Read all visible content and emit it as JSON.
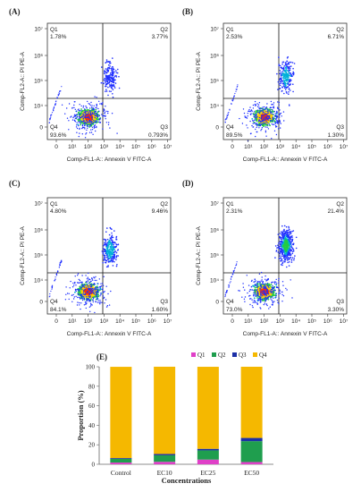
{
  "chart_data": [
    {
      "type": "scatter",
      "panel_label": "(A)",
      "xlabel": "Comp-FL1-A:: Annexin V FITC-A",
      "ylabel": "Comp-FL2-A:: PI PE-A",
      "x_ticks": [
        "0",
        "10¹",
        "10²",
        "10³",
        "10⁴",
        "10⁵",
        "10⁶",
        "10⁷"
      ],
      "y_ticks": [
        "0",
        "10⁴",
        "10⁵",
        "10⁶",
        "10⁷"
      ],
      "quadrants": [
        {
          "name": "Q1",
          "percent": "1.78%"
        },
        {
          "name": "Q2",
          "percent": "3.77%"
        },
        {
          "name": "Q3",
          "percent": "0.793%"
        },
        {
          "name": "Q4",
          "percent": "93.6%"
        }
      ]
    },
    {
      "type": "scatter",
      "panel_label": "(B)",
      "xlabel": "Comp-FL1-A:: Annexin V FITC-A",
      "ylabel": "Comp-FL2-A:: PI PE-A",
      "x_ticks": [
        "0",
        "10¹",
        "10²",
        "10³",
        "10⁴",
        "10⁵",
        "10⁶",
        "10⁷"
      ],
      "y_ticks": [
        "0",
        "10⁴",
        "10⁵",
        "10⁶",
        "10⁷"
      ],
      "quadrants": [
        {
          "name": "Q1",
          "percent": "2.53%"
        },
        {
          "name": "Q2",
          "percent": "6.71%"
        },
        {
          "name": "Q3",
          "percent": "1.30%"
        },
        {
          "name": "Q4",
          "percent": "89.5%"
        }
      ]
    },
    {
      "type": "scatter",
      "panel_label": "(C)",
      "xlabel": "Comp-FL1-A:: Annexin V FITC-A",
      "ylabel": "Comp-FL2-A:: PI PE-A",
      "x_ticks": [
        "0",
        "10¹",
        "10²",
        "10³",
        "10⁴",
        "10⁵",
        "10⁶",
        "10⁷"
      ],
      "y_ticks": [
        "0",
        "10⁴",
        "10⁵",
        "10⁶",
        "10⁷"
      ],
      "quadrants": [
        {
          "name": "Q1",
          "percent": "4.80%"
        },
        {
          "name": "Q2",
          "percent": "9.46%"
        },
        {
          "name": "Q3",
          "percent": "1.60%"
        },
        {
          "name": "Q4",
          "percent": "84.1%"
        }
      ]
    },
    {
      "type": "scatter",
      "panel_label": "(D)",
      "xlabel": "Comp-FL1-A:: Annexin V FITC-A",
      "ylabel": "Comp-FL2-A:: PI PE-A",
      "x_ticks": [
        "0",
        "10¹",
        "10²",
        "10³",
        "10⁴",
        "10⁵",
        "10⁶",
        "10⁷"
      ],
      "y_ticks": [
        "0",
        "10⁴",
        "10⁵",
        "10⁶",
        "10⁷"
      ],
      "quadrants": [
        {
          "name": "Q1",
          "percent": "2.31%"
        },
        {
          "name": "Q2",
          "percent": "21.4%"
        },
        {
          "name": "Q3",
          "percent": "3.30%"
        },
        {
          "name": "Q4",
          "percent": "73.0%"
        }
      ]
    },
    {
      "type": "bar",
      "stacked": true,
      "panel_label": "(E)",
      "xlabel": "Concentrations",
      "ylabel": "Proportion (%)",
      "ylim": [
        0,
        100
      ],
      "y_ticks": [
        0,
        20,
        40,
        60,
        80,
        100
      ],
      "categories": [
        "Control",
        "EC10",
        "EC25",
        "EC50"
      ],
      "legend_position": "top-right",
      "series": [
        {
          "name": "Q1",
          "color": "#e040c8",
          "values": [
            1.78,
            2.53,
            4.8,
            2.31
          ]
        },
        {
          "name": "Q2",
          "color": "#1f9e4e",
          "values": [
            3.77,
            6.71,
            9.46,
            21.4
          ]
        },
        {
          "name": "Q3",
          "color": "#1c2fa6",
          "values": [
            0.793,
            1.3,
            1.6,
            3.3
          ]
        },
        {
          "name": "Q4",
          "color": "#f5b800",
          "values": [
            93.6,
            89.5,
            84.1,
            73.0
          ]
        }
      ]
    }
  ]
}
